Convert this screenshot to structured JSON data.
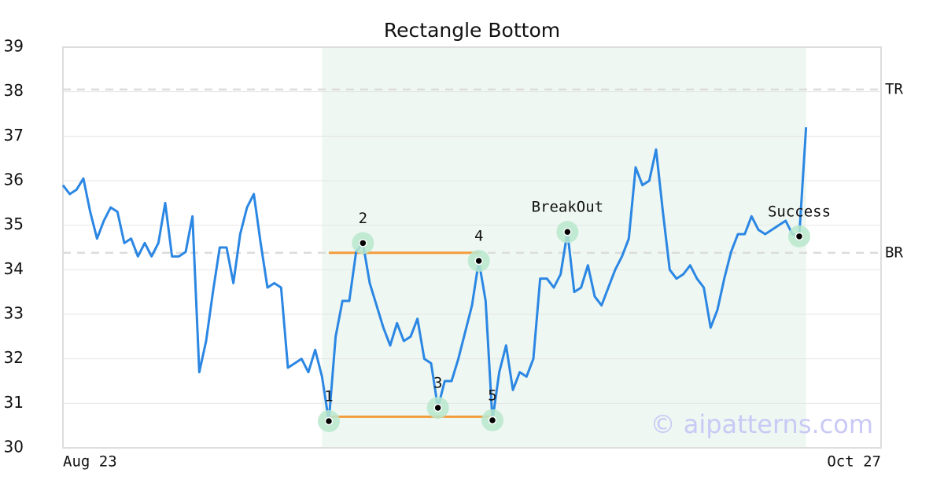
{
  "chart_data": {
    "type": "line",
    "title": "Rectangle Bottom",
    "watermark": "© aipatterns.com",
    "color": "#2b87e3",
    "x": [
      0,
      1,
      2,
      3,
      4,
      5,
      6,
      7,
      8,
      9,
      10,
      11,
      12,
      13,
      14,
      15,
      16,
      17,
      18,
      19,
      20,
      21,
      22,
      23,
      24,
      25,
      26,
      27,
      28,
      29,
      30,
      31,
      32,
      33,
      34,
      35,
      36,
      37,
      38,
      39,
      40,
      41,
      42,
      43,
      44,
      45,
      46,
      47,
      48,
      49,
      50,
      51,
      52,
      53,
      54,
      55,
      56,
      57,
      58,
      59,
      60,
      61,
      62,
      63,
      64,
      65,
      66,
      67,
      68,
      69,
      70,
      71,
      72,
      73,
      74,
      75,
      76,
      77,
      78,
      79,
      80,
      81,
      82,
      83,
      84,
      85,
      86,
      87,
      88,
      89,
      90,
      91,
      92,
      93,
      94,
      95,
      96,
      97,
      98,
      99,
      100,
      101,
      102,
      103,
      104,
      105,
      106,
      107,
      108,
      109
    ],
    "values": [
      35.9,
      35.7,
      35.8,
      36.05,
      35.3,
      34.7,
      35.1,
      35.4,
      35.3,
      34.6,
      34.7,
      34.3,
      34.6,
      34.3,
      34.6,
      35.5,
      34.3,
      34.3,
      34.4,
      35.2,
      31.7,
      32.4,
      33.5,
      34.5,
      34.5,
      33.7,
      34.8,
      35.4,
      35.7,
      34.6,
      33.6,
      33.7,
      33.6,
      31.8,
      31.9,
      32.0,
      31.7,
      32.2,
      31.6,
      30.6,
      32.5,
      33.3,
      33.3,
      34.4,
      34.6,
      33.7,
      33.2,
      32.7,
      32.3,
      32.8,
      32.4,
      32.5,
      32.9,
      32.0,
      31.9,
      30.9,
      31.5,
      31.5,
      32.0,
      32.6,
      33.2,
      34.2,
      33.3,
      30.62,
      31.7,
      32.3,
      31.3,
      31.7,
      31.6,
      32.0,
      33.8,
      33.8,
      33.6,
      33.9,
      34.85,
      33.5,
      33.6,
      34.1,
      33.4,
      33.2,
      33.6,
      34.0,
      34.3,
      34.7,
      36.3,
      35.9,
      36.0,
      36.7,
      35.3,
      34.0,
      33.8,
      33.9,
      34.1,
      33.8,
      33.6,
      32.7,
      33.1,
      33.8,
      34.4,
      34.8,
      34.8,
      35.2,
      34.9,
      34.8,
      34.9,
      35.0,
      35.1,
      34.8,
      34.75,
      37.2
    ],
    "xlim": [
      0,
      120
    ],
    "ylim": [
      30,
      39
    ],
    "xticks": [
      {
        "value": 0,
        "label": "Aug 23"
      },
      {
        "value": 120,
        "label": "Oct 27"
      }
    ],
    "yticks": [
      30,
      31,
      32,
      33,
      34,
      35,
      36,
      37,
      38,
      39
    ],
    "grid": true,
    "highlight": {
      "xlim": [
        38,
        109
      ],
      "color": "#eef7f2"
    },
    "levels": [
      {
        "label": "TR",
        "value": 38.05
      },
      {
        "label": "BR",
        "value": 34.38
      }
    ],
    "segments": [
      {
        "x": [
          39,
          61
        ],
        "y": 34.38
      },
      {
        "x": [
          39,
          63
        ],
        "y": 30.7
      }
    ],
    "segment_color": "#f39c3c",
    "points": [
      {
        "label": "1",
        "x": 39,
        "y": 30.6
      },
      {
        "label": "2",
        "x": 44,
        "y": 34.6
      },
      {
        "label": "3",
        "x": 55,
        "y": 30.9
      },
      {
        "label": "4",
        "x": 61,
        "y": 34.2
      },
      {
        "label": "5",
        "x": 63,
        "y": 30.62
      },
      {
        "label": "BreakOut",
        "x": 74,
        "y": 34.85
      },
      {
        "label": "Success",
        "x": 108,
        "y": 34.75
      }
    ],
    "point_color": "#b8e8cc"
  }
}
